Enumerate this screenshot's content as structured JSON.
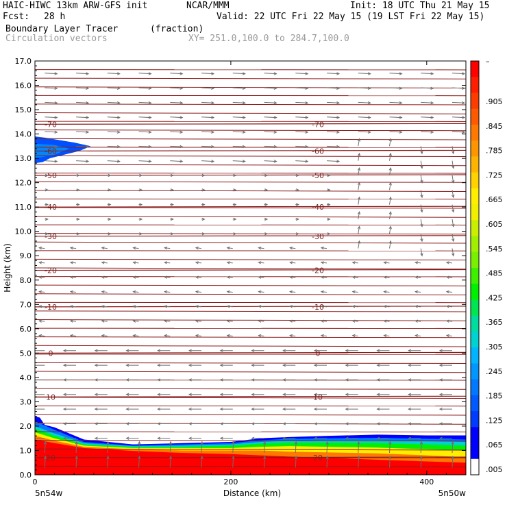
{
  "header": {
    "model": "HAIC-HIWC 13km ARW-GFS init",
    "org": "NCAR/MMM",
    "init": "Init: 18 UTC Thu 21 May 15",
    "fcst_label": "Fcst:",
    "fcst_value": "28 h",
    "valid": "Valid: 22 UTC Fri 22 May 15 (19 LST Fri 22 May 15)",
    "field": "Boundary Layer Tracer",
    "units": "(fraction)",
    "vectors": "Circulation vectors",
    "xy": "XY= 251.0,100.0 to 284.7,100.0"
  },
  "chart_data": {
    "type": "heatmap",
    "ylabel": "Height (km)",
    "xlabel": "Distance (km)",
    "ylim": [
      0,
      17
    ],
    "xlim": [
      0,
      440
    ],
    "y_ticks": [
      "0.0",
      "1.0",
      "2.0",
      "3.0",
      "4.0",
      "5.0",
      "6.0",
      "7.0",
      "8.0",
      "9.0",
      "10.0",
      "11.0",
      "12.0",
      "13.0",
      "14.0",
      "15.0",
      "16.0",
      "17.0"
    ],
    "x_ticks": [
      {
        "value": 0,
        "label": "0"
      },
      {
        "value": 200,
        "label": "200"
      },
      {
        "value": 400,
        "label": "400"
      }
    ],
    "x_endpoints": {
      "left": "5n54w",
      "right": "5n50w"
    },
    "colorbar": {
      "top_label": "–",
      "labels": [
        ".905",
        ".845",
        ".785",
        ".725",
        ".665",
        ".605",
        ".545",
        ".485",
        ".425",
        ".365",
        ".305",
        ".245",
        ".185",
        ".125",
        ".065",
        ".005"
      ],
      "colors": [
        "#ff0000",
        "#ff1e00",
        "#ff3c00",
        "#ff5a00",
        "#ff7800",
        "#ff9600",
        "#ffb400",
        "#ffd200",
        "#ffee00",
        "#f0f000",
        "#c8f000",
        "#a0f000",
        "#78f000",
        "#3cf000",
        "#00f000",
        "#00e650",
        "#00dca0",
        "#00d2d2",
        "#00b4ff",
        "#0096ff",
        "#0078ff",
        "#005aff",
        "#003cff",
        "#0000ff",
        "#0000ff",
        "#ffffff"
      ]
    },
    "isotherms": [
      {
        "label": "20",
        "km": 0.7
      },
      {
        "label": "10",
        "km": 3.2
      },
      {
        "label": "0",
        "km": 5.0
      },
      {
        "label": "-10",
        "km": 6.9
      },
      {
        "label": "-20",
        "km": 8.4
      },
      {
        "label": "-30",
        "km": 9.8
      },
      {
        "label": "-40",
        "km": 11.0
      },
      {
        "label": "-50",
        "km": 12.3
      },
      {
        "label": "-60",
        "km": 13.3
      },
      {
        "label": "-70",
        "km": 14.4
      }
    ]
  },
  "colors": {
    "isotherm": "#8b1a1a",
    "vector": "#6e6e6e",
    "frame": "#000000"
  }
}
